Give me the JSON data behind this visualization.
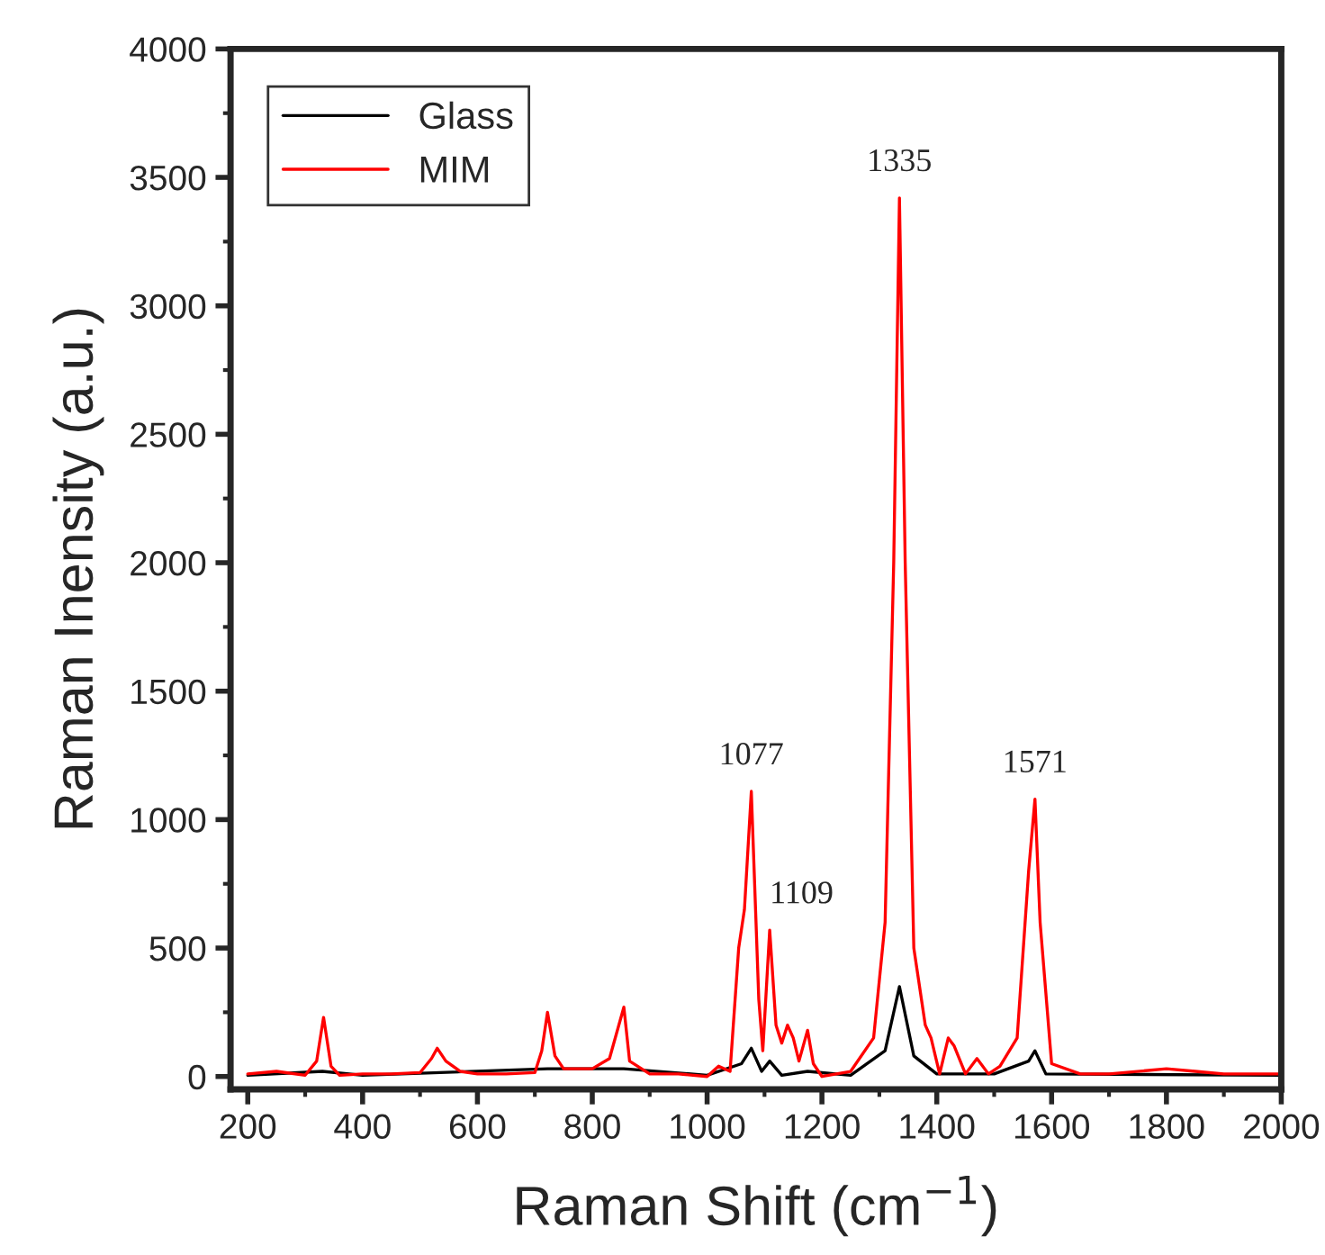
{
  "chart_data": {
    "type": "line",
    "xlabel": "Raman Shift (cm$^{−1}$)",
    "ylabel": "Raman Inensity (a.u.)",
    "xlim": [
      170,
      2000
    ],
    "ylim": [
      -50,
      4000
    ],
    "xticks": [
      200,
      400,
      600,
      800,
      1000,
      1200,
      1400,
      1600,
      1800,
      2000
    ],
    "yticks": [
      0,
      500,
      1000,
      1500,
      2000,
      2500,
      3000,
      3500,
      4000
    ],
    "grid": false,
    "legend": "top left",
    "marker": "none",
    "line_style": "solid",
    "series": [
      {
        "name": "Glass",
        "color": "#000000",
        "x": [
          200,
          330,
          400,
          722,
          855,
          1000,
          1060,
          1077,
          1095,
          1109,
          1130,
          1175,
          1250,
          1310,
          1335,
          1360,
          1400,
          1500,
          1560,
          1571,
          1590,
          2000
        ],
        "values": [
          5,
          20,
          5,
          30,
          30,
          5,
          50,
          110,
          20,
          60,
          5,
          20,
          5,
          100,
          350,
          80,
          10,
          10,
          60,
          100,
          10,
          5
        ]
      },
      {
        "name": "MIM",
        "color": "#ff0000",
        "x": [
          200,
          250,
          300,
          320,
          332,
          345,
          360,
          400,
          450,
          500,
          520,
          530,
          545,
          570,
          600,
          650,
          700,
          712,
          722,
          735,
          750,
          800,
          830,
          855,
          865,
          900,
          950,
          1000,
          1020,
          1040,
          1055,
          1065,
          1077,
          1090,
          1097,
          1109,
          1120,
          1130,
          1140,
          1150,
          1160,
          1175,
          1185,
          1200,
          1250,
          1290,
          1310,
          1325,
          1335,
          1345,
          1360,
          1380,
          1390,
          1405,
          1420,
          1430,
          1450,
          1470,
          1490,
          1510,
          1540,
          1560,
          1571,
          1580,
          1600,
          1650,
          1700,
          1800,
          1850,
          1900,
          2000
        ],
        "values": [
          10,
          20,
          5,
          60,
          230,
          40,
          5,
          10,
          10,
          15,
          70,
          110,
          60,
          20,
          10,
          10,
          15,
          100,
          250,
          80,
          30,
          30,
          70,
          270,
          60,
          10,
          10,
          0,
          40,
          20,
          500,
          650,
          1110,
          300,
          100,
          570,
          200,
          130,
          200,
          150,
          60,
          180,
          50,
          0,
          20,
          150,
          600,
          2000,
          3420,
          2000,
          500,
          200,
          150,
          10,
          150,
          120,
          10,
          70,
          10,
          40,
          150,
          800,
          1080,
          600,
          50,
          10,
          10,
          30,
          20,
          10,
          10
        ]
      }
    ],
    "annotations": [
      {
        "text": "1077",
        "x": 1077,
        "y": 1110
      },
      {
        "text": "1109",
        "x": 1109,
        "y": 570
      },
      {
        "text": "1335",
        "x": 1335,
        "y": 3420
      },
      {
        "text": "1571",
        "x": 1571,
        "y": 1080
      }
    ]
  }
}
